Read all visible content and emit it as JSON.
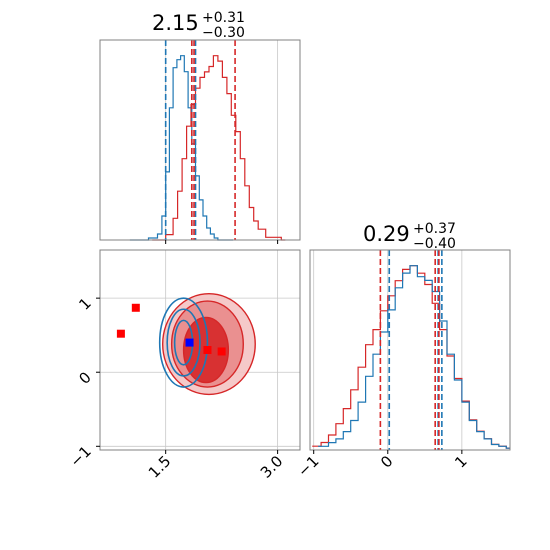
{
  "chart_data": {
    "type": "corner",
    "colors": {
      "blue": "#1f77b4",
      "red": "#d62728",
      "grid": "#c8c8c8",
      "frame": "#808080"
    },
    "titles": {
      "param1": {
        "value": "2.15",
        "plus": "+0.31",
        "minus": "−0.30"
      },
      "param2": {
        "value": "0.29",
        "plus": "+0.37",
        "minus": "−0.40"
      }
    },
    "axes": {
      "param1": {
        "range": [
          0.62,
          3.3
        ],
        "ticks": [
          1.5,
          3.0
        ],
        "tick_labels": [
          "1.5",
          "3.0"
        ]
      },
      "param2": {
        "range": [
          -1.05,
          1.65
        ],
        "ticks": [
          -1,
          0,
          1
        ],
        "tick_labels": [
          "−1",
          "0",
          "1"
        ]
      }
    },
    "marginal_param1": {
      "quantile_lines_blue": [
        1.5,
        1.85,
        1.9
      ],
      "quantile_lines_red": [
        1.85,
        1.88,
        2.43
      ],
      "blue_hist": {
        "x": [
          1.02,
          1.27,
          1.39,
          1.45,
          1.5,
          1.55,
          1.6,
          1.65,
          1.7,
          1.75,
          1.8,
          1.85,
          1.9,
          1.95,
          2.0,
          2.05,
          2.1,
          2.15,
          2.2,
          2.35
        ],
        "y": [
          0,
          1,
          3,
          12,
          34,
          66,
          86,
          90,
          92,
          84,
          66,
          48,
          32,
          20,
          12,
          6,
          3,
          1,
          0,
          0
        ]
      },
      "red_hist": {
        "x": [
          1.32,
          1.5,
          1.6,
          1.66,
          1.72,
          1.78,
          1.84,
          1.9,
          1.96,
          2.02,
          2.08,
          2.14,
          2.2,
          2.26,
          2.32,
          2.38,
          2.44,
          2.5,
          2.56,
          2.62,
          2.68,
          2.74,
          2.84,
          3.05
        ],
        "y": [
          0,
          2,
          8,
          18,
          30,
          42,
          50,
          56,
          60,
          62,
          64,
          68,
          66,
          60,
          54,
          46,
          40,
          30,
          20,
          12,
          7,
          4,
          1,
          0
        ]
      }
    },
    "marginal_param2": {
      "quantile_lines_blue": [
        0.02,
        0.68,
        0.73
      ],
      "quantile_lines_red": [
        -0.1,
        0.64,
        0.69
      ],
      "blue_hist": {
        "x": [
          -0.94,
          -0.8,
          -0.7,
          -0.6,
          -0.5,
          -0.4,
          -0.3,
          -0.2,
          -0.1,
          0.0,
          0.1,
          0.2,
          0.3,
          0.4,
          0.5,
          0.6,
          0.7,
          0.8,
          0.9,
          1.0,
          1.1,
          1.2,
          1.3,
          1.4,
          1.5,
          1.6
        ],
        "y": [
          2,
          4,
          6,
          10,
          16,
          26,
          40,
          52,
          64,
          76,
          88,
          96,
          100,
          94,
          92,
          86,
          70,
          52,
          38,
          26,
          16,
          10,
          6,
          3,
          2,
          1
        ]
      },
      "red_hist": {
        "x": [
          -1.02,
          -0.9,
          -0.8,
          -0.7,
          -0.6,
          -0.5,
          -0.4,
          -0.3,
          -0.2,
          -0.1,
          0.0,
          0.1,
          0.2,
          0.3,
          0.4,
          0.5,
          0.6,
          0.7,
          0.8,
          0.9,
          1.0,
          1.1,
          1.2,
          1.3,
          1.4,
          1.5,
          1.6
        ],
        "y": [
          2,
          4,
          8,
          14,
          22,
          32,
          44,
          56,
          64,
          74,
          82,
          90,
          96,
          98,
          94,
          88,
          78,
          64,
          50,
          38,
          26,
          16,
          10,
          6,
          3,
          2,
          1
        ]
      }
    },
    "joint": {
      "red_contours": [
        {
          "cx": 2.08,
          "cy": 0.38,
          "rx": 0.62,
          "ry": 0.68
        },
        {
          "cx": 2.06,
          "cy": 0.38,
          "rx": 0.48,
          "ry": 0.58
        },
        {
          "cx": 2.04,
          "cy": 0.3,
          "rx": 0.3,
          "ry": 0.44
        }
      ],
      "blue_contours": [
        {
          "cx": 1.74,
          "cy": 0.4,
          "rx": 0.32,
          "ry": 0.6
        },
        {
          "cx": 1.74,
          "cy": 0.4,
          "rx": 0.22,
          "ry": 0.45
        },
        {
          "cx": 1.74,
          "cy": 0.4,
          "rx": 0.12,
          "ry": 0.3
        }
      ],
      "red_points": [
        {
          "x": 0.9,
          "y": 0.52
        },
        {
          "x": 1.1,
          "y": 0.87
        },
        {
          "x": 2.06,
          "y": 0.3
        },
        {
          "x": 2.25,
          "y": 0.28
        }
      ],
      "blue_points": [
        {
          "x": 1.82,
          "y": 0.4
        }
      ]
    }
  }
}
